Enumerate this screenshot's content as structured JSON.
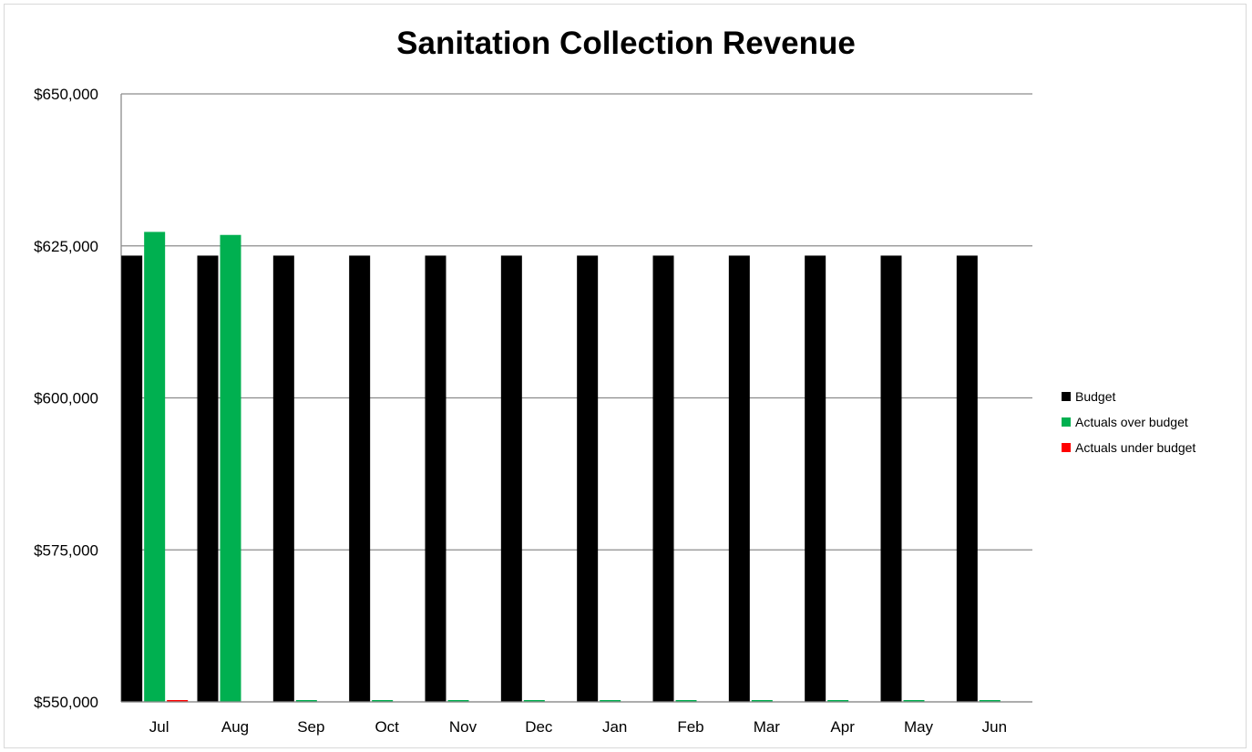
{
  "chart_data": {
    "type": "bar",
    "title": "Sanitation Collection Revenue",
    "xlabel": "",
    "ylabel": "",
    "ylim": [
      550000,
      650000
    ],
    "ytick_values": [
      550000,
      575000,
      600000,
      625000,
      650000
    ],
    "ytick_labels": [
      "$550,000",
      "$575,000",
      "$600,000",
      "$625,000",
      "$650,000"
    ],
    "categories": [
      "Jul",
      "Aug",
      "Sep",
      "Oct",
      "Nov",
      "Dec",
      "Jan",
      "Feb",
      "Mar",
      "Apr",
      "May",
      "Jun"
    ],
    "series": [
      {
        "name": "Budget",
        "color": "#000000",
        "values": [
          623400,
          623400,
          623400,
          623400,
          623400,
          623400,
          623400,
          623400,
          623400,
          623400,
          623400,
          623400
        ]
      },
      {
        "name": "Actuals over budget",
        "color": "#00b050",
        "values": [
          627300,
          626800,
          550000,
          550000,
          550000,
          550000,
          550000,
          550000,
          550000,
          550000,
          550000,
          550000
        ]
      },
      {
        "name": "Actuals under budget",
        "color": "#ff0000",
        "values": [
          550000,
          null,
          null,
          null,
          null,
          null,
          null,
          null,
          null,
          null,
          null,
          null
        ]
      }
    ],
    "grid": true,
    "legend_position": "right"
  }
}
